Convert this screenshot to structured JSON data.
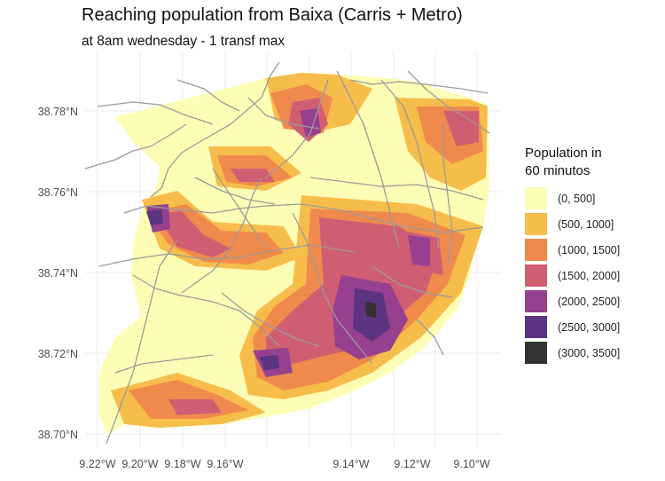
{
  "title": "Reaching population from Baixa (Carris + Metro)",
  "subtitle": "at 8am wednesday - 1 transf max",
  "axes": {
    "y_ticks": [
      "38.78°N",
      "38.76°N",
      "38.74°N",
      "38.72°N",
      "38.70°N"
    ],
    "x_ticks": [
      "9.22°W",
      "9.20°W",
      "9.18°W",
      "9.16°W",
      "9.14°W",
      "9.12°W",
      "9.10°W"
    ]
  },
  "legend": {
    "title_line1": "Population in",
    "title_line2": "60 minutos",
    "items": [
      {
        "label": "(0, 500]",
        "color": "#fdfdb5"
      },
      {
        "label": "(500, 1000]",
        "color": "#f7bd4b"
      },
      {
        "label": "(1000, 1500]",
        "color": "#ef8a4c"
      },
      {
        "label": "(1500, 2000]",
        "color": "#cf5e73"
      },
      {
        "label": "(2000, 2500]",
        "color": "#96408f"
      },
      {
        "label": "(2500, 3000]",
        "color": "#5c3480"
      },
      {
        "label": "(3000, 3500]",
        "color": "#333333"
      }
    ]
  },
  "colors": {
    "grid": "#ebebeb",
    "roads": "#9a9a9a"
  }
}
